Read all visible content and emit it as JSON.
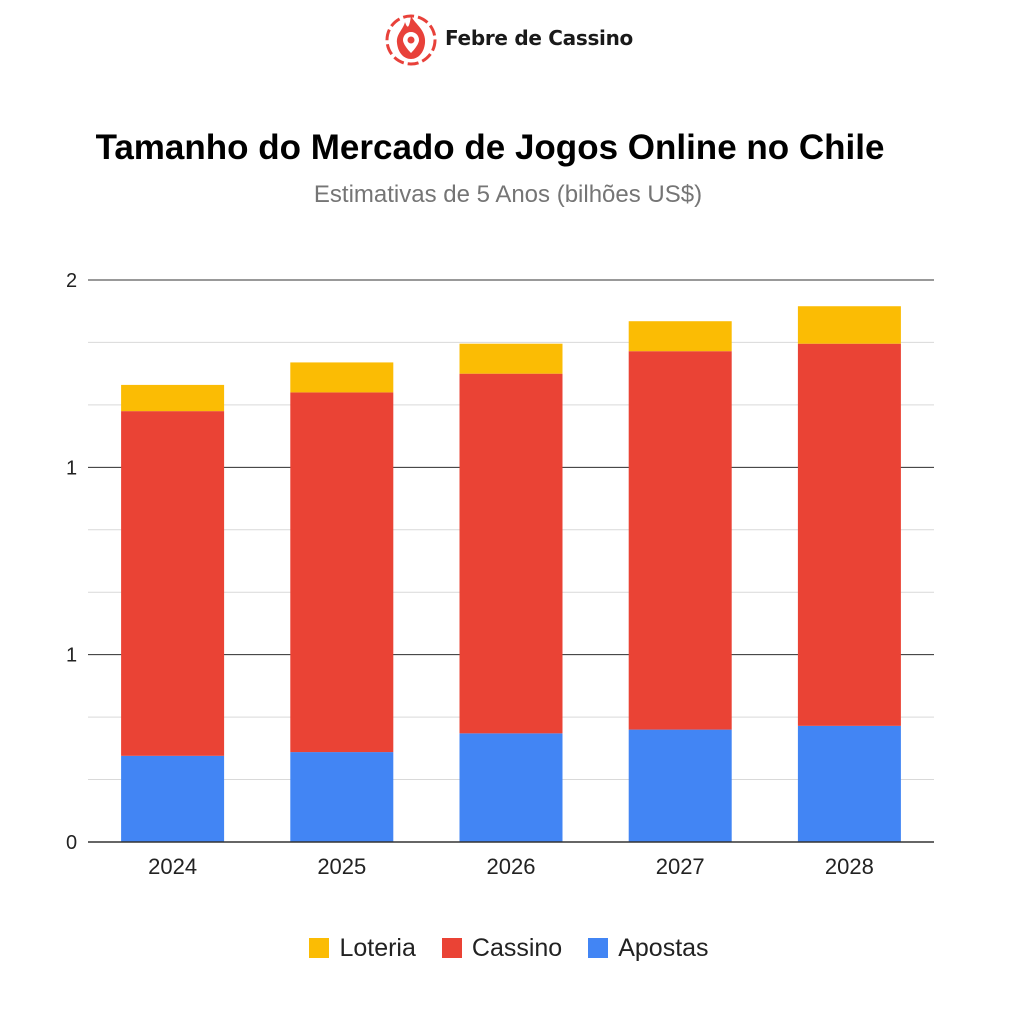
{
  "brand": {
    "name": "Febre de Cassino",
    "logo_icon": "flame-pin-icon",
    "color": "#e8413a"
  },
  "chart_data": {
    "type": "bar",
    "stacked": true,
    "title": "Tamanho do Mercado de Jogos Online no Chile",
    "subtitle": "Estimativas de 5 Anos (bilhões US$)",
    "xlabel": "",
    "ylabel": "",
    "categories": [
      "2024",
      "2025",
      "2026",
      "2027",
      "2028"
    ],
    "series": [
      {
        "name": "Apostas",
        "color": "#4285f4",
        "values": [
          0.23,
          0.24,
          0.29,
          0.3,
          0.31
        ]
      },
      {
        "name": "Cassino",
        "color": "#ea4335",
        "values": [
          0.92,
          0.96,
          0.96,
          1.01,
          1.02
        ]
      },
      {
        "name": "Loteria",
        "color": "#fbbc04",
        "values": [
          0.07,
          0.08,
          0.08,
          0.08,
          0.1
        ]
      }
    ],
    "ylim": [
      0,
      1.5
    ],
    "y_ticks": [
      {
        "value": 0,
        "label": "0"
      },
      {
        "value": 0.5,
        "label": "1"
      },
      {
        "value": 1.0,
        "label": "1"
      },
      {
        "value": 1.5,
        "label": "2"
      }
    ],
    "y_minor_step": 0.16667,
    "grid": true,
    "legend": {
      "position": "bottom",
      "order": [
        "Loteria",
        "Cassino",
        "Apostas"
      ]
    }
  }
}
